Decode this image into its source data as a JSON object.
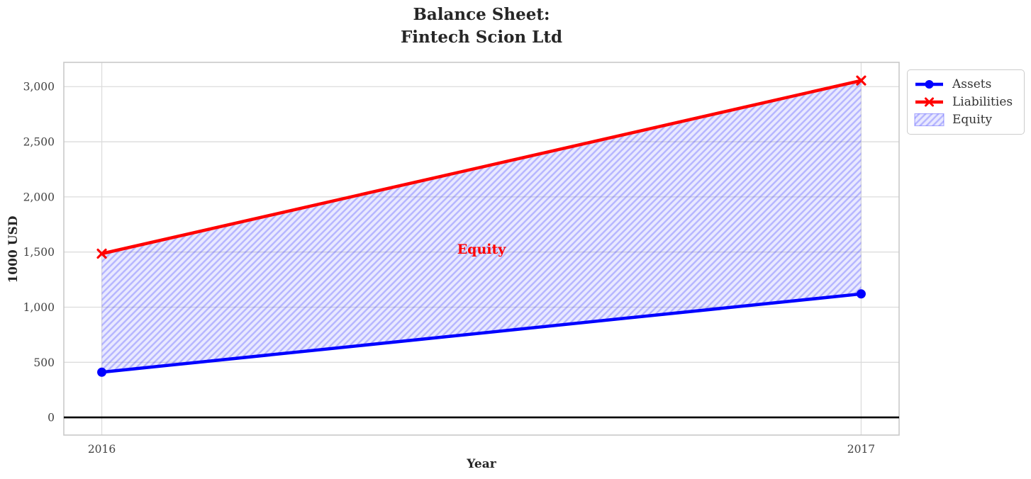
{
  "chart_data": {
    "type": "line",
    "title_lines": [
      "Balance Sheet:",
      "Fintech Scion Ltd"
    ],
    "xlabel": "Year",
    "ylabel": "1000 USD",
    "x": [
      2016,
      2017
    ],
    "series": [
      {
        "name": "Assets",
        "values": [
          410,
          1120
        ],
        "color": "#0000ff",
        "marker": "circle"
      },
      {
        "name": "Liabilities",
        "values": [
          1485,
          3055
        ],
        "color": "#ff0000",
        "marker": "x"
      }
    ],
    "area": {
      "name": "Equity",
      "between": [
        "Assets",
        "Liabilities"
      ],
      "fill_color": "rgba(0,0,255,0.085)",
      "hatch": "//",
      "hatch_color": "rgba(0,0,255,0.22)"
    },
    "annotation": {
      "text": "Equity",
      "x": 2016.5,
      "y": 1525,
      "color": "#ff0000"
    },
    "xlim": [
      2015.95,
      2017.05
    ],
    "ylim": [
      -160,
      3220
    ],
    "xticks": [
      2016,
      2017
    ],
    "xtick_labels": [
      "2016",
      "2017"
    ],
    "yticks": [
      0,
      500,
      1000,
      1500,
      2000,
      2500,
      3000
    ],
    "ytick_labels": [
      "0",
      "500",
      "1,000",
      "1,500",
      "2,000",
      "2,500",
      "3,000"
    ],
    "grid": true,
    "gridline_color": "#dcdcdc",
    "spine_color": "#c9c9c9",
    "zero_line": {
      "y": 0,
      "color": "#000000"
    },
    "tick_label_color": "#424242",
    "legend": {
      "position": "outside-top-right",
      "entries": [
        "Assets",
        "Liabilities",
        "Equity"
      ]
    }
  }
}
